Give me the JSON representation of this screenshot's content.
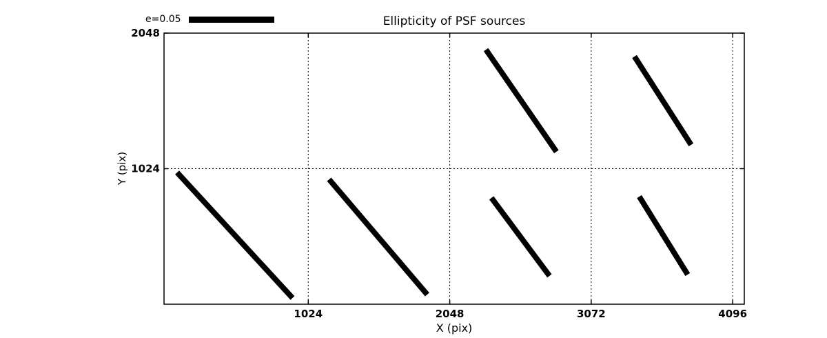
{
  "chart_data": {
    "type": "line",
    "subtype": "psf-ellipticity-whisker-plot",
    "title": "Ellipticity of PSF sources",
    "xlabel": "X (pix)",
    "ylabel": "Y (pix)",
    "xlim": [
      -20,
      4180
    ],
    "ylim": [
      0,
      2048
    ],
    "xticks": [
      1024,
      2048,
      3072,
      4096
    ],
    "yticks": [
      1024,
      2048
    ],
    "xtick_labels": [
      "1024",
      "2048",
      "3072",
      "4096"
    ],
    "ytick_labels": [
      "1024",
      "2048"
    ],
    "grid": "dotted",
    "grid_on": true,
    "legend": {
      "label": "e=0.05",
      "scale_e": 0.05,
      "position": "upper-left-above-axes"
    },
    "colors": {
      "foreground": "#000000",
      "background": "#ffffff"
    },
    "whiskers": [
      {
        "x1": 75,
        "y1": 995,
        "x2": 910,
        "y2": 47,
        "center_x": 512,
        "center_y": 512,
        "e": 0.1
      },
      {
        "x1": 1175,
        "y1": 943,
        "x2": 1885,
        "y2": 73,
        "center_x": 1536,
        "center_y": 512,
        "e": 0.088
      },
      {
        "x1": 2350,
        "y1": 803,
        "x2": 2770,
        "y2": 214,
        "center_x": 2560,
        "center_y": 512,
        "e": 0.057
      },
      {
        "x1": 3420,
        "y1": 813,
        "x2": 3770,
        "y2": 224,
        "center_x": 3584,
        "center_y": 512,
        "e": 0.054
      },
      {
        "x1": 2310,
        "y1": 1923,
        "x2": 2820,
        "y2": 1152,
        "center_x": 2560,
        "center_y": 1536,
        "e": 0.073
      },
      {
        "x1": 3385,
        "y1": 1871,
        "x2": 3795,
        "y2": 1204,
        "center_x": 3584,
        "center_y": 1536,
        "e": 0.061
      }
    ]
  }
}
